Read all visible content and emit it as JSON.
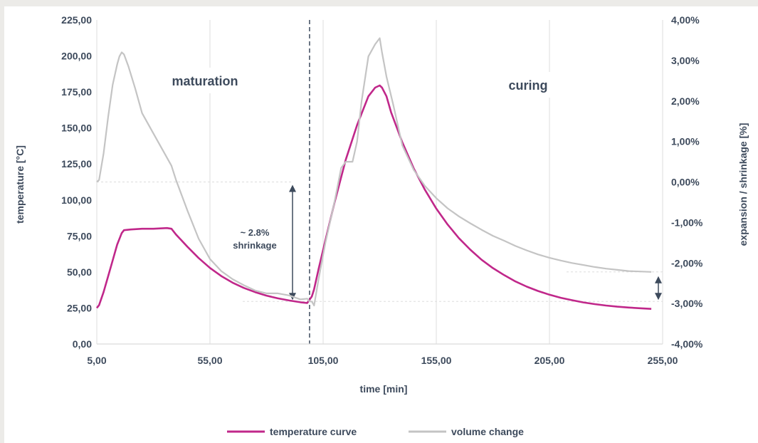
{
  "colors": {
    "temperature": "#c0278a",
    "volume": "#c4c4c4",
    "grid": "#dcdcdc",
    "text": "#3d4a5c",
    "arrow": "#3d4a5c"
  },
  "chart_data": {
    "type": "line",
    "xlabel": "time  [min]",
    "ylabel_left": "temperature [°C]",
    "ylabel_right": "expansion / shrinkage [%]",
    "xlim": [
      5,
      255
    ],
    "ylim_left": [
      0,
      225
    ],
    "ylim_right": [
      -4,
      4
    ],
    "x_ticks": [
      "5,00",
      "55,00",
      "105,00",
      "155,00",
      "205,00",
      "255,00"
    ],
    "y_left_ticks": [
      "0,00",
      "25,00",
      "50,00",
      "75,00",
      "100,00",
      "125,00",
      "150,00",
      "175,00",
      "200,00",
      "225,00"
    ],
    "y_right_ticks": [
      "-4,00%",
      "-3,00%",
      "-2,00%",
      "-1,00%",
      "0,00%",
      "1,00%",
      "2,00%",
      "3,00%",
      "4,00%"
    ],
    "grid": "vertical gridlines",
    "legend_position": "bottom",
    "annotations": {
      "maturation": "maturation",
      "curing": "curing",
      "shrinkage_line1": "~ 2.8%",
      "shrinkage_line2": "shrinkage",
      "divider_x": 99
    },
    "series": [
      {
        "name": "temperature curve",
        "axis": "left",
        "x": [
          5,
          6,
          8,
          10,
          12,
          14,
          16,
          17,
          20,
          25,
          30,
          36,
          38,
          40,
          45,
          50,
          55,
          60,
          65,
          70,
          75,
          80,
          85,
          90,
          95,
          98,
          100,
          101,
          103,
          106,
          110,
          115,
          120,
          125,
          128,
          130,
          131,
          133,
          135,
          140,
          145,
          150,
          155,
          160,
          165,
          170,
          175,
          180,
          185,
          190,
          195,
          200,
          205,
          210,
          215,
          220,
          225,
          230,
          235,
          240,
          245,
          250
        ],
        "values": [
          25,
          27,
          36,
          47,
          58,
          69,
          77,
          79,
          79.5,
          80,
          80,
          80.5,
          80,
          76,
          67.6,
          59.7,
          52.8,
          47.2,
          42.6,
          38.9,
          36,
          33.6,
          31.7,
          30.2,
          29,
          28.5,
          33,
          38,
          52,
          72,
          98,
          128,
          152,
          172,
          178,
          179.5,
          178,
          172,
          161,
          140,
          122,
          107,
          94,
          83,
          73.5,
          65.5,
          58.5,
          52.7,
          47.8,
          43.4,
          39.8,
          36.8,
          34.2,
          32.1,
          30.4,
          28.9,
          27.7,
          26.7,
          25.9,
          25.3,
          24.8,
          24.4
        ]
      },
      {
        "name": "volume change",
        "axis": "right",
        "x": [
          5,
          6,
          8,
          10,
          12,
          14,
          15,
          16,
          17,
          19,
          22,
          25,
          30,
          35,
          38,
          40,
          45,
          50,
          55,
          60,
          65,
          70,
          75,
          80,
          85,
          90,
          95,
          98,
          99,
          100,
          101,
          103,
          106,
          110,
          113,
          115,
          118,
          120,
          122,
          125,
          128,
          130,
          131,
          133,
          136,
          140,
          145,
          150,
          155,
          160,
          165,
          170,
          175,
          180,
          185,
          190,
          195,
          200,
          205,
          210,
          215,
          220,
          225,
          230,
          235,
          240,
          245,
          250
        ],
        "values": [
          0,
          0.05,
          0.7,
          1.6,
          2.4,
          2.9,
          3.1,
          3.2,
          3.15,
          2.85,
          2.3,
          1.7,
          1.2,
          0.7,
          0.4,
          0.05,
          -0.7,
          -1.4,
          -1.9,
          -2.2,
          -2.4,
          -2.55,
          -2.68,
          -2.75,
          -2.75,
          -2.8,
          -2.9,
          -2.88,
          -2.95,
          -2.95,
          -3.05,
          -2.4,
          -1.5,
          -0.5,
          0.35,
          0.5,
          0.5,
          1.0,
          2.0,
          3.1,
          3.4,
          3.55,
          3.2,
          2.6,
          1.9,
          0.9,
          0.3,
          -0.1,
          -0.4,
          -0.65,
          -0.85,
          -1.02,
          -1.18,
          -1.33,
          -1.45,
          -1.58,
          -1.69,
          -1.79,
          -1.87,
          -1.94,
          -2.0,
          -2.05,
          -2.1,
          -2.14,
          -2.17,
          -2.2,
          -2.21,
          -2.22
        ]
      }
    ]
  }
}
